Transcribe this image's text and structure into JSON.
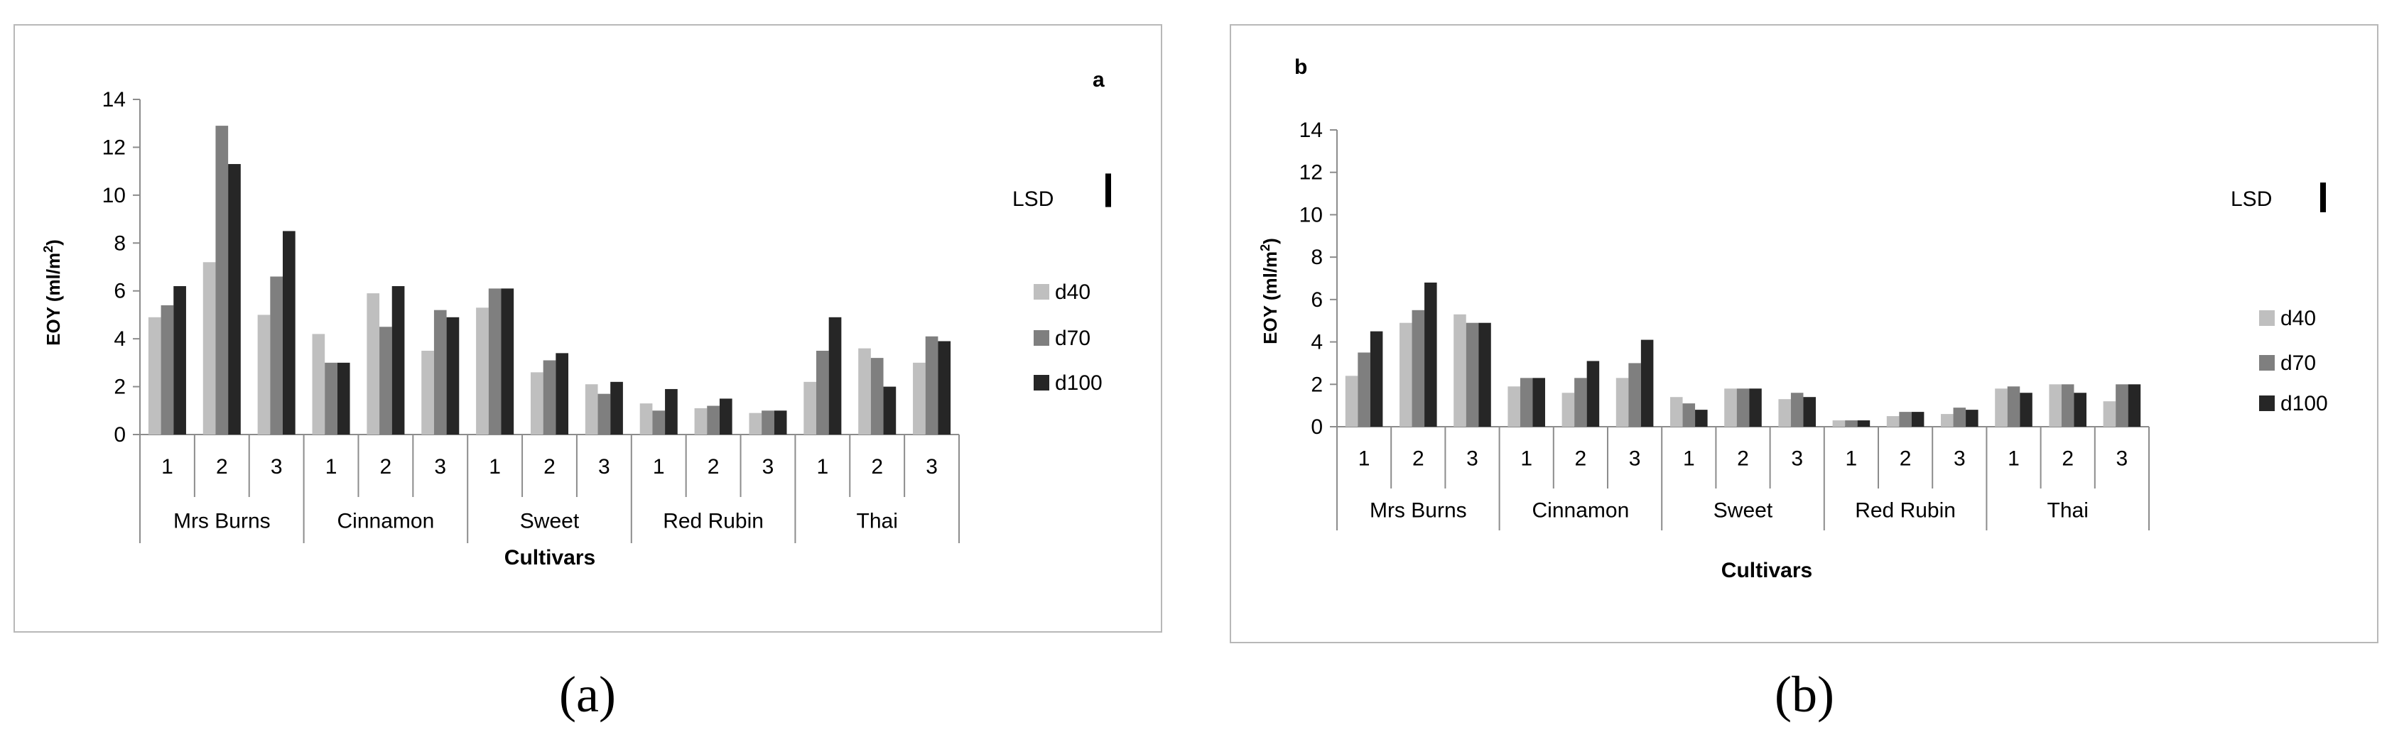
{
  "chart_data": [
    {
      "type": "bar",
      "panel_tag": "a",
      "caption": "(a)",
      "ylabel": "EOY (ml/m",
      "ylabel_sup": "2",
      "ylabel_end": ")",
      "xlabel": "Cultivars",
      "ylim": [
        0,
        14
      ],
      "yticks": [
        "0",
        "2",
        "4",
        "6",
        "8",
        "10",
        "12",
        "14"
      ],
      "groups": [
        "Mrs Burns",
        "Cinnamon",
        "Sweet",
        "Red Rubin",
        "Thai"
      ],
      "subcategories": [
        "1",
        "2",
        "3"
      ],
      "legend_position": "right",
      "lsd_label": "LSD",
      "lsd_value": 1.4,
      "series": [
        {
          "name": "d40",
          "color": "#bfbfbf",
          "values": [
            4.9,
            7.2,
            5.0,
            4.2,
            5.9,
            3.5,
            5.3,
            2.6,
            2.1,
            1.3,
            1.1,
            0.9,
            2.2,
            3.6,
            3.0
          ]
        },
        {
          "name": "d70",
          "color": "#7f7f7f",
          "values": [
            5.4,
            12.9,
            6.6,
            3.0,
            4.5,
            5.2,
            6.1,
            3.1,
            1.7,
            1.0,
            1.2,
            1.0,
            3.5,
            3.2,
            4.1
          ]
        },
        {
          "name": "d100",
          "color": "#262626",
          "values": [
            6.2,
            11.3,
            8.5,
            3.0,
            6.2,
            4.9,
            6.1,
            3.4,
            2.2,
            1.9,
            1.5,
            1.0,
            4.9,
            2.0,
            3.9
          ]
        }
      ]
    },
    {
      "type": "bar",
      "panel_tag": "b",
      "caption": "(b)",
      "ylabel": "EOY (ml/m",
      "ylabel_sup": "2",
      "ylabel_end": ")",
      "xlabel": "Cultivars",
      "ylim": [
        0,
        14
      ],
      "yticks": [
        "0",
        "2",
        "4",
        "6",
        "8",
        "10",
        "12",
        "14"
      ],
      "groups": [
        "Mrs Burns",
        "Cinnamon",
        "Sweet",
        "Red Rubin",
        "Thai"
      ],
      "subcategories": [
        "1",
        "2",
        "3"
      ],
      "legend_position": "right",
      "lsd_label": "LSD",
      "lsd_value": 1.4,
      "series": [
        {
          "name": "d40",
          "color": "#bfbfbf",
          "values": [
            2.4,
            4.9,
            5.3,
            1.9,
            1.6,
            2.3,
            1.4,
            1.8,
            1.3,
            0.3,
            0.5,
            0.6,
            1.8,
            2.0,
            1.2
          ]
        },
        {
          "name": "d70",
          "color": "#7f7f7f",
          "values": [
            3.5,
            5.5,
            4.9,
            2.3,
            2.3,
            3.0,
            1.1,
            1.8,
            1.6,
            0.3,
            0.7,
            0.9,
            1.9,
            2.0,
            2.0
          ]
        },
        {
          "name": "d100",
          "color": "#262626",
          "values": [
            4.5,
            6.8,
            4.9,
            2.3,
            3.1,
            4.1,
            0.8,
            1.8,
            1.4,
            0.3,
            0.7,
            0.8,
            1.6,
            1.6,
            2.0
          ]
        }
      ]
    }
  ]
}
